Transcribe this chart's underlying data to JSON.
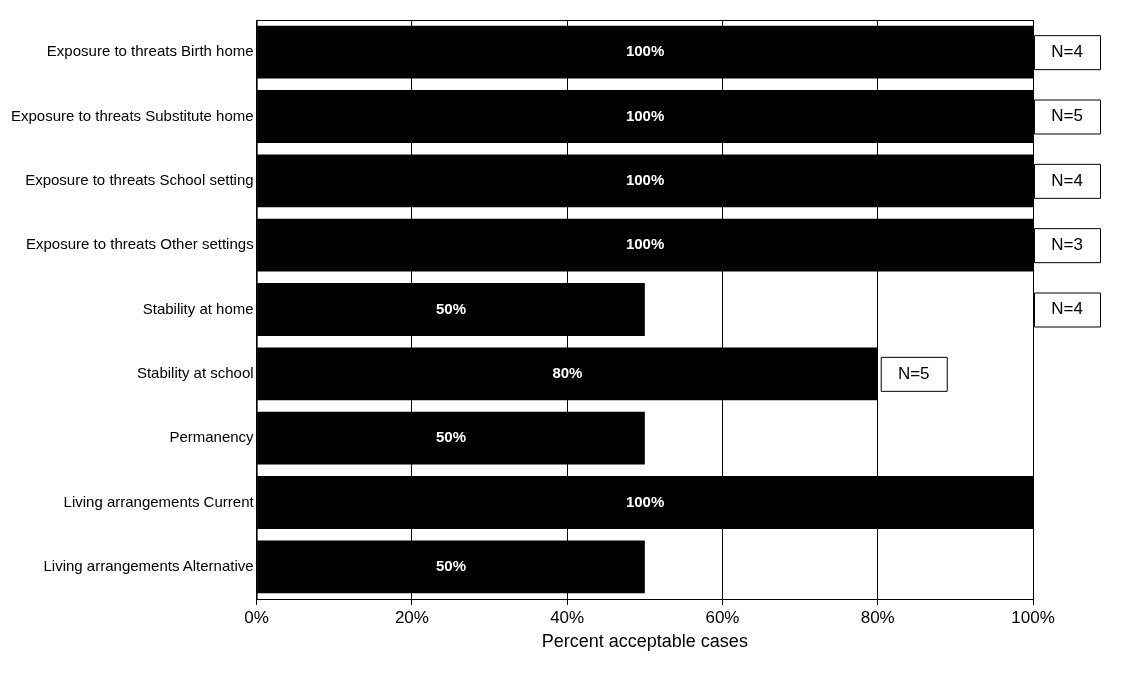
{
  "chart_data": {
    "type": "bar",
    "orientation": "horizontal",
    "xlabel": "Percent acceptable cases",
    "categories": [
      "Exposure to threats Birth home",
      "Exposure to threats Substitute home",
      "Exposure to threats School setting",
      "Exposure to threats Other settings",
      "Stability at home",
      "Stability at school",
      "Permanency",
      "Living arrangements Current",
      "Living arrangements Alternative"
    ],
    "series": [
      {
        "color": "#000000",
        "values": [
          100,
          100,
          100,
          100,
          50,
          80,
          50,
          100,
          50
        ],
        "value_labels": [
          "100%",
          "100%",
          "100%",
          "100%",
          "50%",
          "80%",
          "50%",
          "100%",
          "50%"
        ]
      }
    ],
    "xlim": [
      0,
      100
    ],
    "xticks": [
      {
        "value": 0,
        "label": "0%"
      },
      {
        "value": 20,
        "label": "20%"
      },
      {
        "value": 40,
        "label": "40%"
      },
      {
        "value": 60,
        "label": "60%"
      },
      {
        "value": 80,
        "label": "80%"
      },
      {
        "value": 100,
        "label": "100%"
      }
    ],
    "grid": "x",
    "legend": false,
    "annotations": [
      "N=4",
      "N=5",
      "N=4",
      "N=3",
      {
        "text": "N=5",
        "x": 80,
        "y": "Stability at school"
      },
      "N=4"
    ]
  }
}
